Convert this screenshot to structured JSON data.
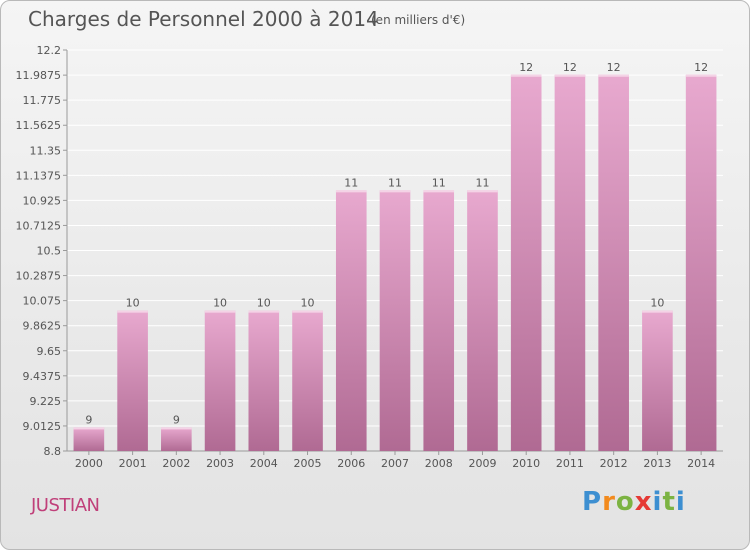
{
  "header": {
    "title": "Charges de Personnel 2000 à 2014",
    "subtitle": "(en milliers d'€)"
  },
  "footer": {
    "commune": "JUSTIAN",
    "logo": [
      "P",
      "r",
      "o",
      "x",
      "i",
      "t",
      "i"
    ]
  },
  "colors": {
    "bar_light": "#e8a9cf",
    "bar_dark": "#b06a93",
    "label_text": "#555555",
    "commune_text": "#c0407a",
    "logo_letters": [
      "#3d8fd1",
      "#f28a1d",
      "#7cb342",
      "#e53935",
      "#3d8fd1",
      "#7cb342",
      "#3d8fd1"
    ]
  },
  "chart_data": {
    "type": "bar",
    "title": "Charges de Personnel 2000 à 2014",
    "categories": [
      "2000",
      "2001",
      "2002",
      "2003",
      "2004",
      "2005",
      "2006",
      "2007",
      "2008",
      "2009",
      "2010",
      "2011",
      "2012",
      "2013",
      "2014"
    ],
    "values": [
      9,
      10,
      9,
      10,
      10,
      10,
      11,
      11,
      11,
      11,
      12,
      12,
      12,
      10,
      12
    ],
    "plot_values": [
      9.0,
      9.99,
      9.0,
      9.99,
      9.99,
      9.99,
      11.01,
      11.01,
      11.01,
      11.01,
      11.99,
      11.99,
      11.99,
      9.99,
      11.99
    ],
    "data_labels": [
      "9",
      "10",
      "9",
      "10",
      "10",
      "10",
      "11",
      "11",
      "11",
      "11",
      "12",
      "12",
      "12",
      "10",
      "12"
    ],
    "yticks": [
      "8.8",
      "9.0125",
      "9.225",
      "9.4375",
      "9.65",
      "9.8625",
      "10.075",
      "10.2875",
      "10.5",
      "10.7125",
      "10.925",
      "11.1375",
      "11.35",
      "11.5625",
      "11.775",
      "11.9875",
      "12.2"
    ],
    "ylim": [
      8.8,
      12.2
    ],
    "grid": true,
    "xlabel": "",
    "ylabel": ""
  }
}
